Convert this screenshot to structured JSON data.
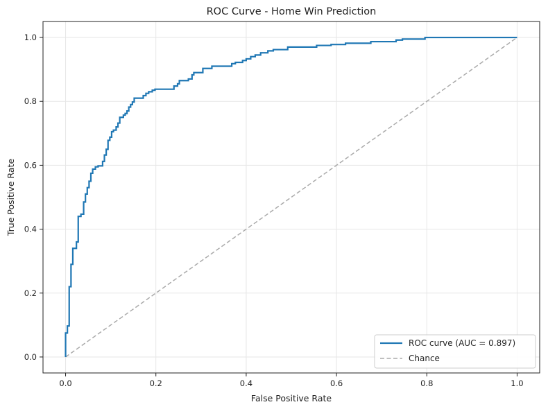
{
  "chart_data": {
    "type": "line",
    "title": "ROC Curve - Home Win Prediction",
    "xlabel": "False Positive Rate",
    "ylabel": "True Positive Rate",
    "xlim": [
      -0.05,
      1.05
    ],
    "ylim": [
      -0.05,
      1.05
    ],
    "xticks": [
      "0.0",
      "0.2",
      "0.4",
      "0.6",
      "0.8",
      "1.0"
    ],
    "yticks": [
      "0.0",
      "0.2",
      "0.4",
      "0.6",
      "0.8",
      "1.0"
    ],
    "grid": true,
    "legend_position": "lower right",
    "series": [
      {
        "name": "ROC curve (AUC = 0.897)",
        "color": "#1f77b4",
        "style": "step",
        "points": [
          [
            0.0,
            0.0
          ],
          [
            0.0,
            0.075
          ],
          [
            0.004,
            0.075
          ],
          [
            0.004,
            0.097
          ],
          [
            0.008,
            0.097
          ],
          [
            0.008,
            0.22
          ],
          [
            0.012,
            0.22
          ],
          [
            0.012,
            0.29
          ],
          [
            0.016,
            0.29
          ],
          [
            0.016,
            0.34
          ],
          [
            0.024,
            0.34
          ],
          [
            0.024,
            0.36
          ],
          [
            0.028,
            0.36
          ],
          [
            0.028,
            0.44
          ],
          [
            0.034,
            0.44
          ],
          [
            0.034,
            0.447
          ],
          [
            0.04,
            0.447
          ],
          [
            0.04,
            0.485
          ],
          [
            0.044,
            0.485
          ],
          [
            0.044,
            0.51
          ],
          [
            0.048,
            0.51
          ],
          [
            0.048,
            0.53
          ],
          [
            0.052,
            0.53
          ],
          [
            0.052,
            0.55
          ],
          [
            0.056,
            0.55
          ],
          [
            0.056,
            0.575
          ],
          [
            0.06,
            0.575
          ],
          [
            0.06,
            0.588
          ],
          [
            0.066,
            0.588
          ],
          [
            0.066,
            0.595
          ],
          [
            0.072,
            0.595
          ],
          [
            0.072,
            0.598
          ],
          [
            0.082,
            0.598
          ],
          [
            0.082,
            0.612
          ],
          [
            0.086,
            0.612
          ],
          [
            0.086,
            0.632
          ],
          [
            0.09,
            0.632
          ],
          [
            0.09,
            0.65
          ],
          [
            0.094,
            0.65
          ],
          [
            0.094,
            0.678
          ],
          [
            0.098,
            0.678
          ],
          [
            0.098,
            0.688
          ],
          [
            0.102,
            0.688
          ],
          [
            0.102,
            0.705
          ],
          [
            0.106,
            0.705
          ],
          [
            0.106,
            0.71
          ],
          [
            0.112,
            0.71
          ],
          [
            0.112,
            0.72
          ],
          [
            0.116,
            0.72
          ],
          [
            0.116,
            0.732
          ],
          [
            0.12,
            0.732
          ],
          [
            0.12,
            0.75
          ],
          [
            0.128,
            0.75
          ],
          [
            0.128,
            0.757
          ],
          [
            0.132,
            0.757
          ],
          [
            0.132,
            0.762
          ],
          [
            0.136,
            0.762
          ],
          [
            0.136,
            0.77
          ],
          [
            0.14,
            0.77
          ],
          [
            0.14,
            0.782
          ],
          [
            0.144,
            0.782
          ],
          [
            0.144,
            0.79
          ],
          [
            0.148,
            0.79
          ],
          [
            0.148,
            0.798
          ],
          [
            0.152,
            0.798
          ],
          [
            0.152,
            0.81
          ],
          [
            0.172,
            0.81
          ],
          [
            0.172,
            0.818
          ],
          [
            0.178,
            0.818
          ],
          [
            0.178,
            0.825
          ],
          [
            0.184,
            0.825
          ],
          [
            0.184,
            0.83
          ],
          [
            0.192,
            0.83
          ],
          [
            0.192,
            0.835
          ],
          [
            0.198,
            0.835
          ],
          [
            0.198,
            0.838
          ],
          [
            0.24,
            0.838
          ],
          [
            0.24,
            0.848
          ],
          [
            0.248,
            0.848
          ],
          [
            0.248,
            0.855
          ],
          [
            0.252,
            0.855
          ],
          [
            0.252,
            0.865
          ],
          [
            0.272,
            0.865
          ],
          [
            0.272,
            0.87
          ],
          [
            0.28,
            0.87
          ],
          [
            0.28,
            0.883
          ],
          [
            0.284,
            0.883
          ],
          [
            0.284,
            0.89
          ],
          [
            0.304,
            0.89
          ],
          [
            0.304,
            0.903
          ],
          [
            0.324,
            0.903
          ],
          [
            0.324,
            0.91
          ],
          [
            0.368,
            0.91
          ],
          [
            0.368,
            0.918
          ],
          [
            0.376,
            0.918
          ],
          [
            0.376,
            0.922
          ],
          [
            0.392,
            0.922
          ],
          [
            0.392,
            0.928
          ],
          [
            0.4,
            0.928
          ],
          [
            0.4,
            0.933
          ],
          [
            0.41,
            0.933
          ],
          [
            0.41,
            0.94
          ],
          [
            0.42,
            0.94
          ],
          [
            0.42,
            0.945
          ],
          [
            0.432,
            0.945
          ],
          [
            0.432,
            0.952
          ],
          [
            0.448,
            0.952
          ],
          [
            0.448,
            0.958
          ],
          [
            0.46,
            0.958
          ],
          [
            0.46,
            0.962
          ],
          [
            0.492,
            0.962
          ],
          [
            0.492,
            0.97
          ],
          [
            0.556,
            0.97
          ],
          [
            0.556,
            0.975
          ],
          [
            0.588,
            0.975
          ],
          [
            0.588,
            0.978
          ],
          [
            0.62,
            0.978
          ],
          [
            0.62,
            0.982
          ],
          [
            0.676,
            0.982
          ],
          [
            0.676,
            0.987
          ],
          [
            0.732,
            0.987
          ],
          [
            0.732,
            0.992
          ],
          [
            0.746,
            0.992
          ],
          [
            0.746,
            0.995
          ],
          [
            0.796,
            0.995
          ],
          [
            0.796,
            1.0
          ],
          [
            1.0,
            1.0
          ]
        ]
      },
      {
        "name": "Chance",
        "color": "#aaaaaa",
        "style": "dashed",
        "points": [
          [
            0,
            0
          ],
          [
            1,
            1
          ]
        ]
      }
    ]
  }
}
